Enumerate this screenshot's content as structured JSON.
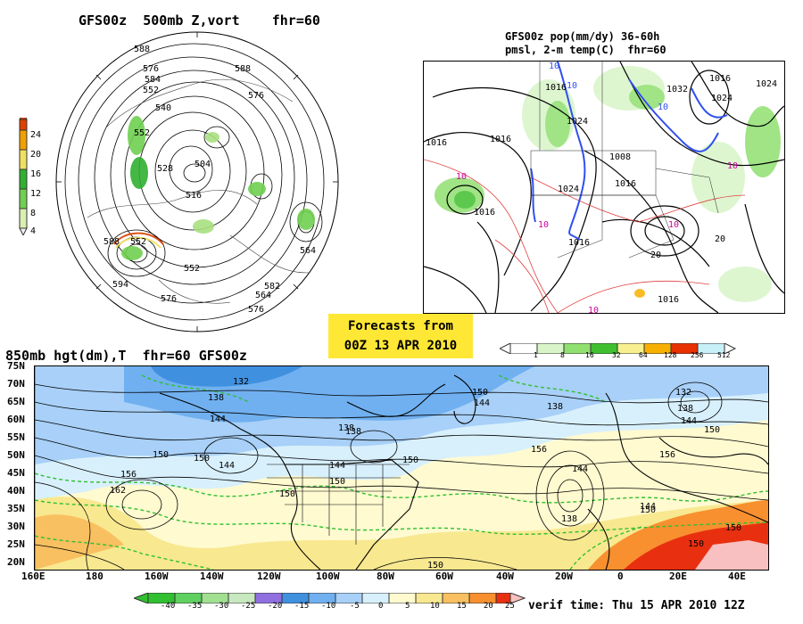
{
  "panels": {
    "top_left": {
      "title": "GFS00z  500mb Z,vort    fhr=60",
      "contour_labels": [
        "588",
        "576",
        "584",
        "552",
        "540",
        "528",
        "516",
        "504",
        "552",
        "588",
        "576",
        "588",
        "564",
        "552",
        "552",
        "594",
        "576",
        "582",
        "564",
        "576"
      ],
      "colorbar": {
        "ticks": [
          "24",
          "20",
          "16",
          "12",
          "8",
          "4"
        ],
        "colors": [
          "#f0f0f0",
          "#d8f0b0",
          "#a8e080",
          "#70d050",
          "#30b030",
          "#f0e060",
          "#f0a000",
          "#e04000"
        ]
      }
    },
    "top_right": {
      "title_line1": "GFS00z pop(mm/dy) 36-60h",
      "title_line2": "pmsl, 2-m temp(C)  fhr=60",
      "isobar_labels": [
        "1016",
        "1024",
        "1016",
        "1016",
        "1024",
        "1008",
        "1016",
        "1016",
        "1016",
        "1032",
        "1024",
        "1016",
        "1016",
        "1024"
      ],
      "temp_labels": [
        "10",
        "10",
        "10",
        "10",
        "10",
        "10",
        "10",
        "20",
        "20",
        "10"
      ],
      "colorbar": {
        "ticks": [
          "1",
          "8",
          "16",
          "32",
          "64",
          "128",
          "256",
          "512"
        ],
        "colors": [
          "#ffffff",
          "#d8f5c8",
          "#90e070",
          "#40c030",
          "#f8f090",
          "#f8b000",
          "#f08000",
          "#e83000",
          "#c8f0f8"
        ]
      }
    },
    "center": {
      "forecast_line1": "Forecasts from",
      "forecast_line2": "00Z 13 APR 2010"
    },
    "bottom": {
      "title": "850mb hgt(dm),T  fhr=60 GFS00z",
      "lat_labels": [
        "75N",
        "70N",
        "65N",
        "60N",
        "55N",
        "50N",
        "45N",
        "40N",
        "35N",
        "30N",
        "25N",
        "20N"
      ],
      "lon_labels": [
        "160E",
        "180",
        "160W",
        "140W",
        "120W",
        "100W",
        "80W",
        "60W",
        "40W",
        "20W",
        "0",
        "20E",
        "40E"
      ],
      "height_labels": [
        "132",
        "138",
        "144",
        "150",
        "156",
        "162",
        "150",
        "144",
        "138",
        "150",
        "144",
        "138",
        "150",
        "156",
        "150",
        "150",
        "144",
        "132",
        "138",
        "144",
        "150",
        "156",
        "144",
        "138",
        "150",
        "150",
        "150",
        "144",
        "150",
        "138"
      ],
      "colorbar": {
        "ticks": [
          "-40",
          "-35",
          "-30",
          "-25",
          "-20",
          "-15",
          "-10",
          "-5",
          "0",
          "5",
          "10",
          "15",
          "20",
          "25"
        ],
        "colors": [
          "#30c030",
          "#60d060",
          "#a0e090",
          "#c8e8c0",
          "#9070e0",
          "#4090e0",
          "#70b0f0",
          "#a8d0f8",
          "#d8f0fc",
          "#fffad0",
          "#f8e890",
          "#f8c060",
          "#f89030",
          "#e83010",
          "#f8c0c0"
        ]
      }
    },
    "verif": "verif time: Thu 15 APR 2010 12Z"
  }
}
